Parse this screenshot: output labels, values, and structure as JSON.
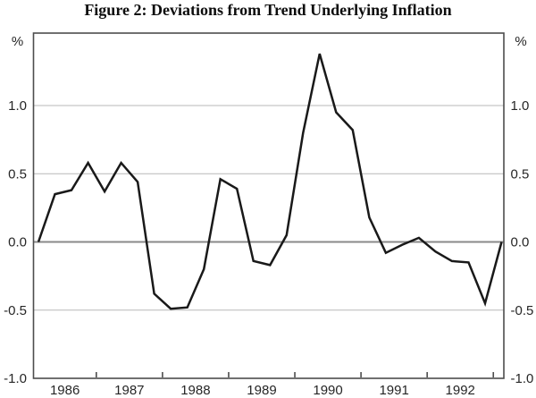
{
  "chart_data": {
    "type": "line",
    "title": "Figure 2: Deviations from Trend Underlying Inflation",
    "unit_label": "%",
    "xlabel": "",
    "ylabel": "%",
    "x_tick_labels": [
      "1986",
      "1987",
      "1988",
      "1989",
      "1990",
      "1991",
      "1992"
    ],
    "y_tick_labels": [
      "1.0",
      "0.5",
      "0.0",
      "-0.5",
      "-1.0"
    ],
    "y_ticks": [
      1.0,
      0.5,
      0.0,
      -0.5,
      -1.0
    ],
    "ylim": [
      -1.0,
      1.5
    ],
    "grid": "horizontal-gridlines-at-labeled-ticks",
    "zero_line": true,
    "legend_position": "none",
    "frequency": "quarterly",
    "x_start": "1986Q1",
    "x_end": "1993Q1",
    "series": [
      {
        "name": "Deviation from trend underlying inflation (%)",
        "values": [
          0.0,
          0.35,
          0.38,
          0.58,
          0.37,
          0.58,
          0.44,
          -0.38,
          -0.49,
          -0.48,
          -0.2,
          0.46,
          0.39,
          -0.14,
          -0.17,
          0.05,
          0.8,
          1.38,
          0.95,
          0.82,
          0.18,
          -0.08,
          -0.02,
          0.03,
          -0.07,
          -0.14,
          -0.15,
          -0.45,
          0.0
        ]
      }
    ],
    "colors": {
      "line": "#191919",
      "frame": "#4d4d4d",
      "gridline": "#b8b8b8",
      "zero_line": "#8a8a8a",
      "label": "#262626"
    }
  }
}
